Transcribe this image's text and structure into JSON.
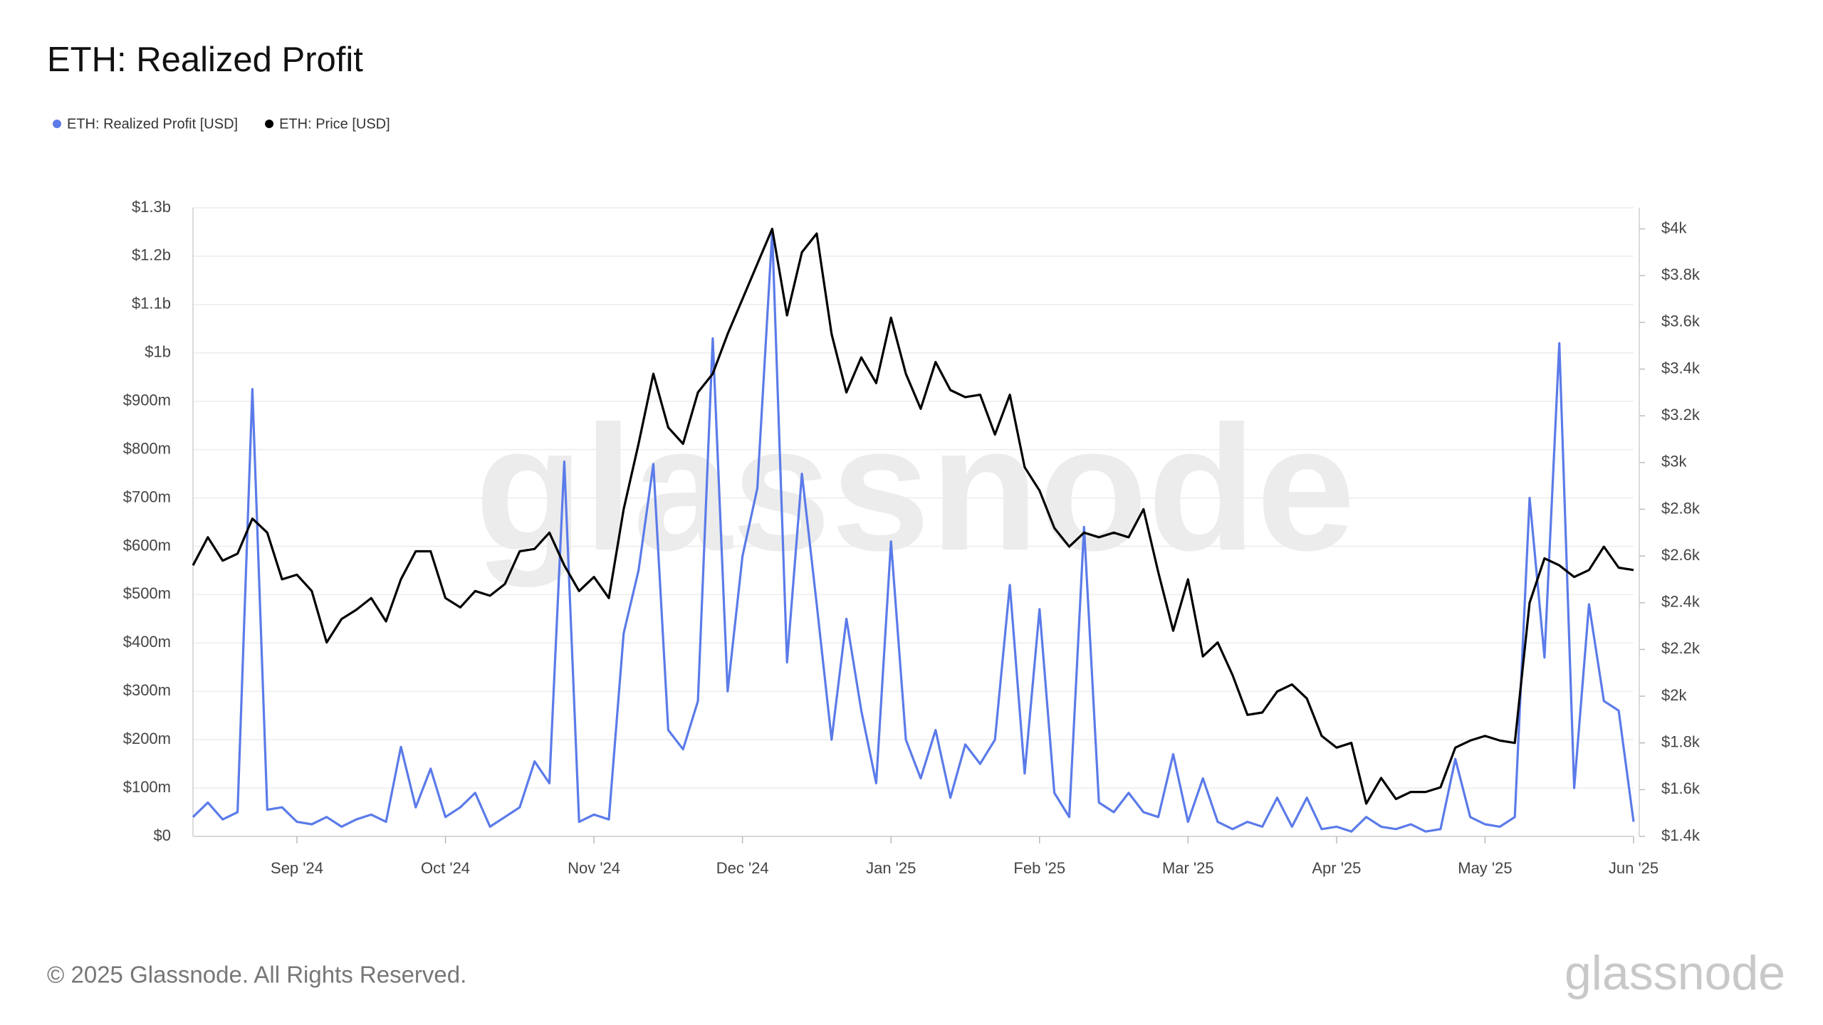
{
  "chart_data": {
    "type": "line",
    "title": "ETH: Realized Profit",
    "watermark": "glassnode",
    "brand": "glassnode",
    "footer": "© 2025 Glassnode. All Rights Reserved.",
    "grid": true,
    "legend": "top-left",
    "categories": [
      null,
      null,
      null,
      null,
      null,
      null,
      null,
      "Sep '24",
      null,
      null,
      null,
      null,
      null,
      null,
      null,
      null,
      null,
      "Oct '24",
      null,
      null,
      null,
      null,
      null,
      null,
      null,
      null,
      null,
      "Nov '24",
      null,
      null,
      null,
      null,
      null,
      null,
      null,
      null,
      null,
      "Dec '24",
      null,
      null,
      null,
      null,
      null,
      null,
      null,
      null,
      null,
      "Jan '25",
      null,
      null,
      null,
      null,
      null,
      null,
      null,
      null,
      null,
      "Feb '25",
      null,
      null,
      null,
      null,
      null,
      null,
      null,
      null,
      null,
      "Mar '25",
      null,
      null,
      null,
      null,
      null,
      null,
      null,
      null,
      null,
      "Apr '25",
      null,
      null,
      null,
      null,
      null,
      null,
      null,
      null,
      null,
      "May '25",
      null,
      null,
      null,
      null,
      null,
      null,
      null,
      null,
      null,
      "Jun '25"
    ],
    "ylim": [
      0,
      1300000000
    ],
    "yticks": [
      {
        "value": 0,
        "label": "$0"
      },
      {
        "value": 100000000,
        "label": "$100m"
      },
      {
        "value": 200000000,
        "label": "$200m"
      },
      {
        "value": 300000000,
        "label": "$300m"
      },
      {
        "value": 400000000,
        "label": "$400m"
      },
      {
        "value": 500000000,
        "label": "$500m"
      },
      {
        "value": 600000000,
        "label": "$600m"
      },
      {
        "value": 700000000,
        "label": "$700m"
      },
      {
        "value": 800000000,
        "label": "$800m"
      },
      {
        "value": 900000000,
        "label": "$900m"
      },
      {
        "value": 1000000000,
        "label": "$1b"
      },
      {
        "value": 1100000000,
        "label": "$1.1b"
      },
      {
        "value": 1200000000,
        "label": "$1.2b"
      },
      {
        "value": 1300000000,
        "label": "$1.3b"
      }
    ],
    "y2lim": [
      1400,
      4090
    ],
    "y2ticks": [
      {
        "value": 1400,
        "label": "$1.4k"
      },
      {
        "value": 1600,
        "label": "$1.6k"
      },
      {
        "value": 1800,
        "label": "$1.8k"
      },
      {
        "value": 2000,
        "label": "$2k"
      },
      {
        "value": 2200,
        "label": "$2.2k"
      },
      {
        "value": 2400,
        "label": "$2.4k"
      },
      {
        "value": 2600,
        "label": "$2.6k"
      },
      {
        "value": 2800,
        "label": "$2.8k"
      },
      {
        "value": 3000,
        "label": "$3k"
      },
      {
        "value": 3200,
        "label": "$3.2k"
      },
      {
        "value": 3400,
        "label": "$3.4k"
      },
      {
        "value": 3600,
        "label": "$3.6k"
      },
      {
        "value": 3800,
        "label": "$3.8k"
      },
      {
        "value": 4000,
        "label": "$4k"
      }
    ],
    "series": [
      {
        "name": "ETH: Realized Profit [USD]",
        "color": "#5b7be9",
        "axis": "y",
        "values": [
          40000000,
          70000000,
          35000000,
          50000000,
          925000000,
          55000000,
          60000000,
          30000000,
          25000000,
          40000000,
          20000000,
          35000000,
          45000000,
          30000000,
          185000000,
          60000000,
          140000000,
          40000000,
          60000000,
          90000000,
          20000000,
          40000000,
          60000000,
          155000000,
          110000000,
          775000000,
          30000000,
          45000000,
          35000000,
          420000000,
          550000000,
          770000000,
          220000000,
          180000000,
          280000000,
          1030000000,
          300000000,
          580000000,
          720000000,
          1250000000,
          360000000,
          750000000,
          480000000,
          200000000,
          450000000,
          260000000,
          110000000,
          610000000,
          200000000,
          120000000,
          220000000,
          80000000,
          190000000,
          150000000,
          200000000,
          520000000,
          130000000,
          470000000,
          90000000,
          40000000,
          640000000,
          70000000,
          50000000,
          90000000,
          50000000,
          40000000,
          170000000,
          30000000,
          120000000,
          30000000,
          15000000,
          30000000,
          20000000,
          80000000,
          20000000,
          80000000,
          15000000,
          20000000,
          10000000,
          40000000,
          20000000,
          15000000,
          25000000,
          10000000,
          15000000,
          160000000,
          40000000,
          25000000,
          20000000,
          40000000,
          700000000,
          370000000,
          1020000000,
          100000000,
          480000000,
          280000000,
          260000000,
          30000000
        ]
      },
      {
        "name": "ETH: Price [USD]",
        "color": "#000000",
        "axis": "y2",
        "values": [
          2560,
          2680,
          2580,
          2610,
          2760,
          2700,
          2500,
          2520,
          2450,
          2230,
          2330,
          2370,
          2420,
          2320,
          2500,
          2620,
          2620,
          2420,
          2380,
          2450,
          2430,
          2480,
          2620,
          2630,
          2700,
          2560,
          2450,
          2510,
          2420,
          2800,
          3080,
          3380,
          3150,
          3080,
          3300,
          3380,
          3550,
          3700,
          3850,
          4000,
          3630,
          3900,
          3980,
          3550,
          3300,
          3450,
          3340,
          3620,
          3380,
          3230,
          3430,
          3310,
          3280,
          3290,
          3120,
          3290,
          2980,
          2880,
          2720,
          2640,
          2700,
          2680,
          2700,
          2680,
          2800,
          2530,
          2280,
          2500,
          2170,
          2230,
          2090,
          1920,
          1930,
          2020,
          2050,
          1990,
          1830,
          1780,
          1800,
          1540,
          1650,
          1560,
          1590,
          1590,
          1610,
          1780,
          1810,
          1830,
          1810,
          1800,
          2400,
          2590,
          2560,
          2510,
          2540,
          2640,
          2550,
          2540
        ]
      }
    ]
  }
}
